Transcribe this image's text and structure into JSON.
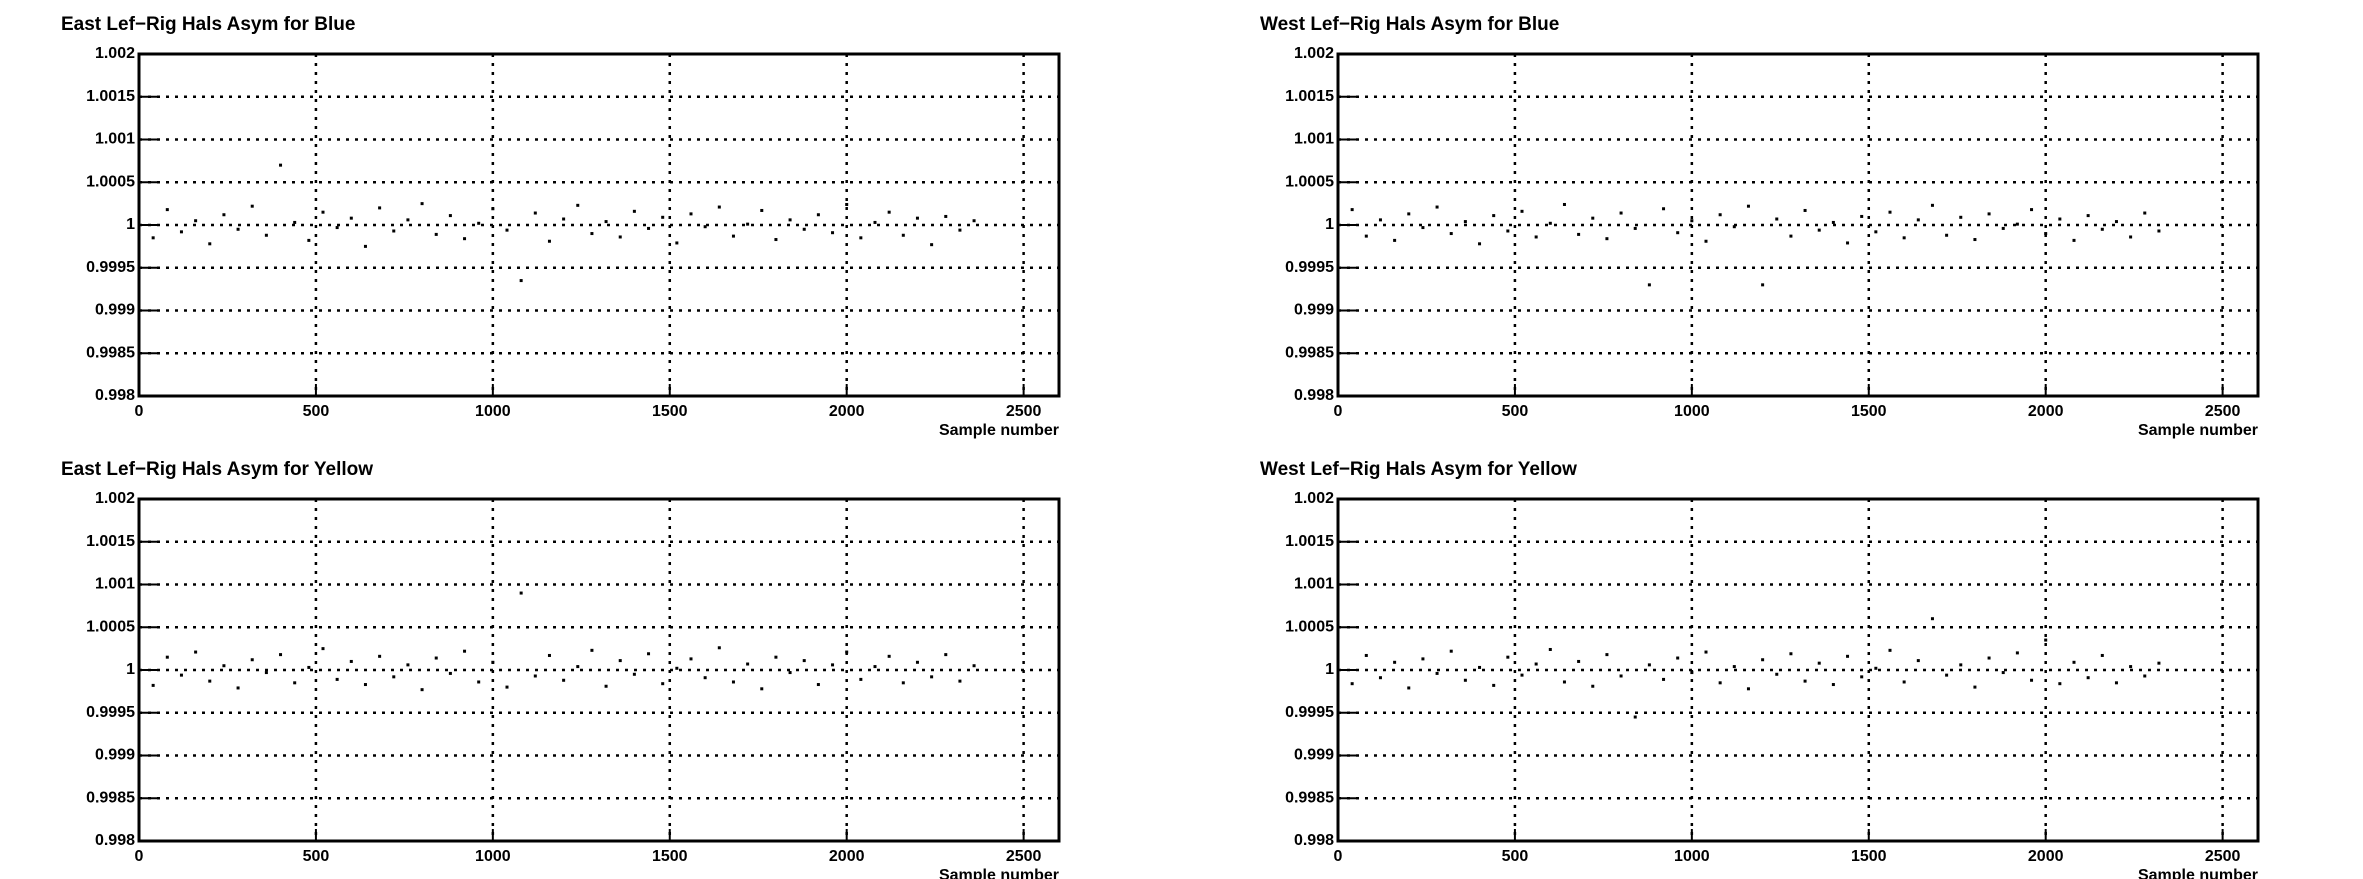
{
  "chart_data": [
    {
      "type": "scatter",
      "title": "East Lef−Rig Hals Asym for Blue",
      "x_label": "Sample number",
      "color": "#000000",
      "grid": true,
      "xlim": [
        0,
        2600
      ],
      "xticks": [
        0,
        500,
        1000,
        1500,
        2000,
        2500
      ],
      "ylim": [
        0.998,
        1.002
      ],
      "yticks": [
        0.998,
        0.9985,
        0.999,
        0.9995,
        1,
        1.0005,
        1.001,
        1.0015,
        1.002
      ],
      "x": [
        0,
        40,
        80,
        120,
        160,
        200,
        240,
        280,
        320,
        360,
        400,
        440,
        480,
        520,
        560,
        600,
        640,
        680,
        720,
        760,
        800,
        840,
        880,
        920,
        960,
        1000,
        1040,
        1080,
        1120,
        1160,
        1200,
        1240,
        1280,
        1320,
        1360,
        1400,
        1440,
        1480,
        1520,
        1560,
        1600,
        1640,
        1680,
        1720,
        1760,
        1800,
        1840,
        1880,
        1920,
        1960,
        2000,
        2040,
        2080,
        2120,
        2160,
        2200,
        2240,
        2280,
        2320,
        2360
      ],
      "values": [
        1.0001,
        0.99985,
        1.00018,
        0.99992,
        1.00005,
        0.99978,
        1.00012,
        0.99995,
        1.00022,
        0.99988,
        1.0007,
        1.00003,
        0.99982,
        1.00015,
        0.99997,
        1.00008,
        0.99975,
        1.0002,
        0.99993,
        1.00006,
        1.00025,
        0.99989,
        1.00011,
        0.99984,
        1.00002,
        1.00019,
        0.99994,
        0.99935,
        1.00014,
        0.99981,
        1.00007,
        1.00023,
        0.9999,
        1.00004,
        0.99986,
        1.00016,
        0.99996,
        1.00009,
        0.99979,
        1.00013,
        0.99998,
        1.00021,
        0.99987,
        1.00001,
        1.00017,
        0.99983,
        1.00006,
        0.99995,
        1.00012,
        0.99991,
        1.00024,
        0.99985,
        1.00003,
        1.00015,
        0.99988,
        1.00008,
        0.99977,
        1.0001,
        0.99994,
        1.00005
      ]
    },
    {
      "type": "scatter",
      "title": "West Lef−Rig Hals Asym for Blue",
      "x_label": "Sample number",
      "color": "#000000",
      "grid": true,
      "xlim": [
        0,
        2600
      ],
      "xticks": [
        0,
        500,
        1000,
        1500,
        2000,
        2500
      ],
      "ylim": [
        0.998,
        1.002
      ],
      "yticks": [
        0.998,
        0.9985,
        0.999,
        0.9995,
        1,
        1.0005,
        1.001,
        1.0015,
        1.002
      ],
      "x": [
        0,
        40,
        80,
        120,
        160,
        200,
        240,
        280,
        320,
        360,
        400,
        440,
        480,
        520,
        560,
        600,
        640,
        680,
        720,
        760,
        800,
        840,
        880,
        920,
        960,
        1000,
        1040,
        1080,
        1120,
        1160,
        1200,
        1240,
        1280,
        1320,
        1360,
        1400,
        1440,
        1480,
        1520,
        1560,
        1600,
        1640,
        1680,
        1720,
        1760,
        1800,
        1840,
        1880,
        1920,
        1960,
        2000,
        2040,
        2080,
        2120,
        2160,
        2200,
        2240,
        2280,
        2320
      ],
      "values": [
        0.99995,
        1.00018,
        0.99987,
        1.00006,
        0.99982,
        1.00013,
        0.99997,
        1.00021,
        0.9999,
        1.00004,
        0.99978,
        1.00011,
        0.99993,
        1.00016,
        0.99986,
        1.00002,
        1.00024,
        0.99989,
        1.00008,
        0.99984,
        1.00014,
        0.99996,
        0.9993,
        1.00019,
        0.99991,
        1.00005,
        0.99981,
        1.00012,
        0.99998,
        1.00022,
        0.9993,
        1.00007,
        0.99987,
        1.00017,
        0.99994,
        1.00003,
        0.99979,
        1.0001,
        0.99992,
        1.00015,
        0.99985,
        1.00006,
        1.00023,
        0.99988,
        1.00009,
        0.99983,
        1.00013,
        0.99996,
        1.00001,
        1.00018,
        0.9999,
        1.00007,
        0.99982,
        1.00011,
        0.99995,
        1.00004,
        0.99986,
        1.00014,
        0.99993
      ]
    },
    {
      "type": "scatter",
      "title": "East Lef−Rig Hals Asym for Yellow",
      "x_label": "Sample number",
      "color": "#000000",
      "grid": true,
      "xlim": [
        0,
        2600
      ],
      "xticks": [
        0,
        500,
        1000,
        1500,
        2000,
        2500
      ],
      "ylim": [
        0.998,
        1.002
      ],
      "yticks": [
        0.998,
        0.9985,
        0.999,
        0.9995,
        1,
        1.0005,
        1.001,
        1.0015,
        1.002
      ],
      "x": [
        0,
        40,
        80,
        120,
        160,
        200,
        240,
        280,
        320,
        360,
        400,
        440,
        480,
        520,
        560,
        600,
        640,
        680,
        720,
        760,
        800,
        840,
        880,
        920,
        960,
        1000,
        1040,
        1080,
        1120,
        1160,
        1200,
        1240,
        1280,
        1320,
        1360,
        1400,
        1440,
        1480,
        1520,
        1560,
        1600,
        1640,
        1680,
        1720,
        1760,
        1800,
        1840,
        1880,
        1920,
        1960,
        2000,
        2040,
        2080,
        2120,
        2160,
        2200,
        2240,
        2280,
        2320,
        2360
      ],
      "values": [
        1.00008,
        0.99982,
        1.00015,
        0.99994,
        1.00021,
        0.99987,
        1.00005,
        0.99979,
        1.00012,
        0.99997,
        1.00018,
        0.99985,
        1.00003,
        1.00025,
        0.99989,
        1.0001,
        0.99983,
        1.00016,
        0.99992,
        1.00006,
        0.99977,
        1.00014,
        0.99996,
        1.00022,
        0.99986,
        1.00009,
        0.9998,
        1.0009,
        0.99993,
        1.00017,
        0.99988,
        1.00004,
        1.00023,
        0.99981,
        1.00011,
        0.99995,
        1.00019,
        0.99984,
        1.00002,
        1.00013,
        0.99991,
        1.00026,
        0.99986,
        1.00007,
        0.99978,
        1.00015,
        0.99997,
        1.00011,
        0.99983,
        1.00006,
        1.00021,
        0.99989,
        1.00004,
        1.00016,
        0.99985,
        1.00009,
        0.99992,
        1.00018,
        0.99987,
        1.00005
      ]
    },
    {
      "type": "scatter",
      "title": "West Lef−Rig Hals Asym for Yellow",
      "x_label": "Sample number",
      "color": "#000000",
      "grid": true,
      "xlim": [
        0,
        2600
      ],
      "xticks": [
        0,
        500,
        1000,
        1500,
        2000,
        2500
      ],
      "ylim": [
        0.998,
        1.002
      ],
      "yticks": [
        0.998,
        0.9985,
        0.999,
        0.9995,
        1,
        1.0005,
        1.001,
        1.0015,
        1.002
      ],
      "x": [
        0,
        40,
        80,
        120,
        160,
        200,
        240,
        280,
        320,
        360,
        400,
        440,
        480,
        520,
        560,
        600,
        640,
        680,
        720,
        760,
        800,
        840,
        880,
        920,
        960,
        1000,
        1040,
        1080,
        1120,
        1160,
        1200,
        1240,
        1280,
        1320,
        1360,
        1400,
        1440,
        1480,
        1520,
        1560,
        1600,
        1640,
        1680,
        1720,
        1760,
        1800,
        1840,
        1880,
        1920,
        1960,
        2000,
        2040,
        2080,
        2120,
        2160,
        2200,
        2240,
        2280,
        2320
      ],
      "values": [
        1.00005,
        0.99984,
        1.00017,
        0.99991,
        1.00009,
        0.99979,
        1.00013,
        0.99996,
        1.00022,
        0.99988,
        1.00003,
        0.99982,
        1.00015,
        0.99994,
        1.00007,
        1.00024,
        0.99986,
        1.0001,
        0.99981,
        1.00018,
        0.99993,
        0.99945,
        1.00006,
        0.99989,
        1.00014,
        0.99997,
        1.00021,
        0.99985,
        1.00004,
        0.99978,
        1.00012,
        0.99995,
        1.00019,
        0.99987,
        1.00008,
        0.99983,
        1.00016,
        0.99992,
        1.00002,
        1.00023,
        0.99986,
        1.00011,
        1.0006,
        0.99994,
        1.00006,
        0.9998,
        1.00014,
        0.99997,
        1.0002,
        0.99988,
        1.00035,
        0.99984,
        1.00009,
        0.99991,
        1.00017,
        0.99985,
        1.00004,
        0.99993,
        1.00008
      ]
    }
  ]
}
